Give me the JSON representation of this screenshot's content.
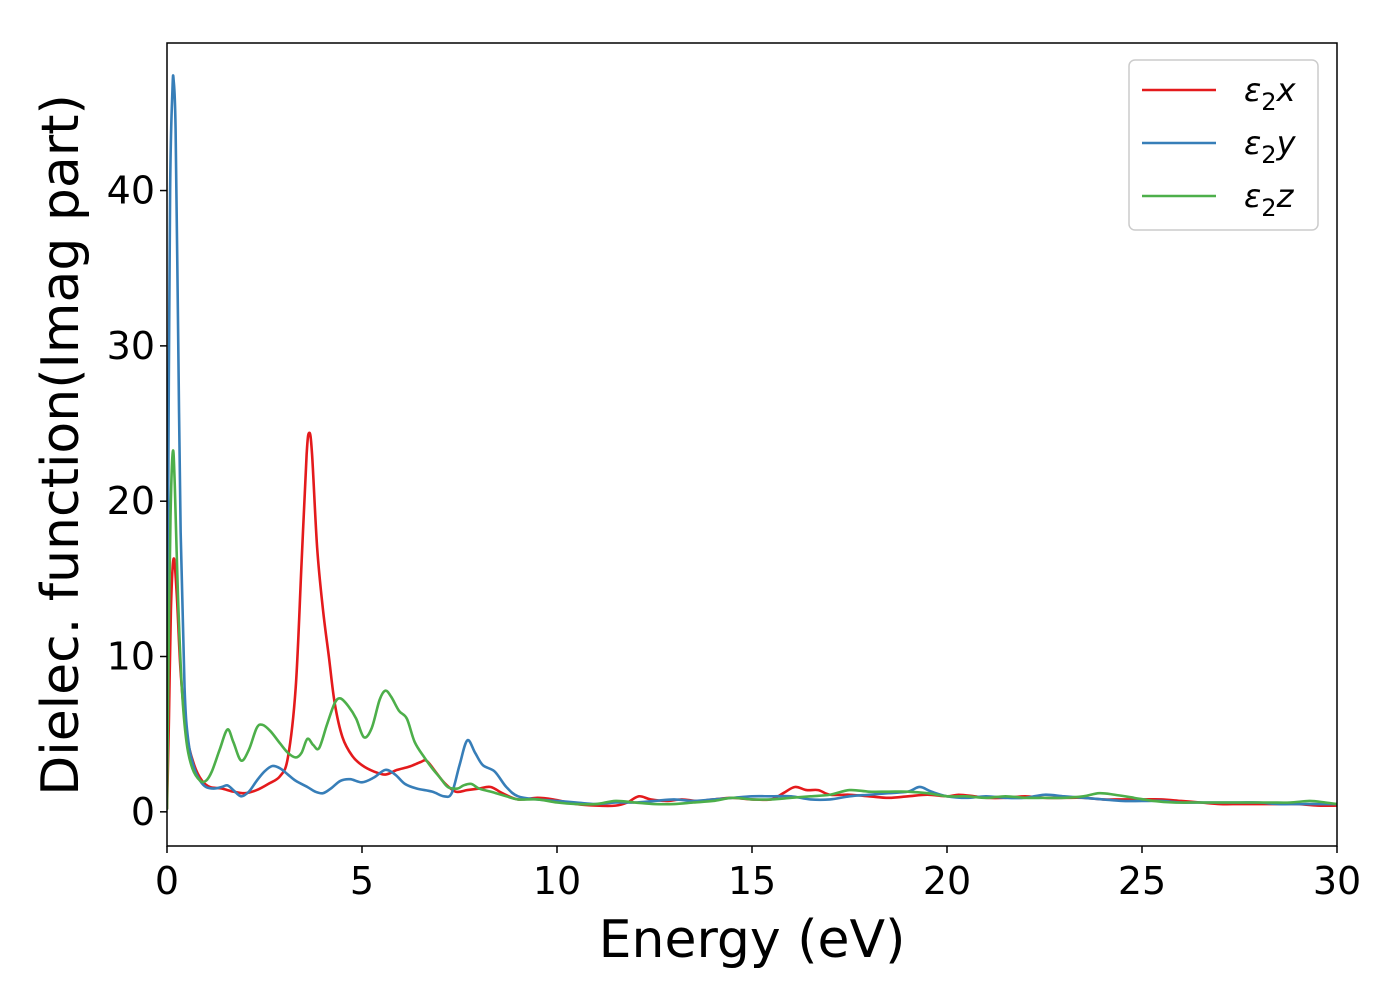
{
  "chart_data": {
    "type": "line",
    "title": "",
    "xlabel": "Energy (eV)",
    "ylabel": "Dielec. function(Imag part)",
    "xlim": [
      0,
      30
    ],
    "ylim": [
      -2.2,
      49.5
    ],
    "xticks": [
      0,
      5,
      10,
      15,
      20,
      25,
      30
    ],
    "yticks": [
      0,
      10,
      20,
      30,
      40
    ],
    "grid": false,
    "legend_position": "top-right",
    "series": [
      {
        "name": "ε2x",
        "legend": {
          "base": "ε",
          "sub": "2",
          "tail": "x"
        },
        "color": "#e41a1c",
        "points": [
          [
            0.0,
            0.2
          ],
          [
            0.05,
            6.0
          ],
          [
            0.1,
            13.0
          ],
          [
            0.17,
            16.3
          ],
          [
            0.25,
            14.0
          ],
          [
            0.35,
            9.0
          ],
          [
            0.5,
            5.0
          ],
          [
            0.7,
            3.0
          ],
          [
            0.9,
            2.0
          ],
          [
            1.1,
            1.6
          ],
          [
            1.4,
            1.5
          ],
          [
            1.7,
            1.3
          ],
          [
            2.0,
            1.2
          ],
          [
            2.3,
            1.4
          ],
          [
            2.6,
            1.8
          ],
          [
            2.9,
            2.3
          ],
          [
            3.1,
            3.5
          ],
          [
            3.3,
            8.0
          ],
          [
            3.45,
            16.0
          ],
          [
            3.58,
            23.0
          ],
          [
            3.65,
            24.4
          ],
          [
            3.72,
            23.0
          ],
          [
            3.85,
            17.0
          ],
          [
            4.0,
            13.0
          ],
          [
            4.15,
            10.0
          ],
          [
            4.3,
            7.0
          ],
          [
            4.5,
            4.8
          ],
          [
            4.75,
            3.6
          ],
          [
            5.0,
            3.0
          ],
          [
            5.3,
            2.6
          ],
          [
            5.6,
            2.4
          ],
          [
            5.9,
            2.7
          ],
          [
            6.2,
            2.9
          ],
          [
            6.5,
            3.2
          ],
          [
            6.65,
            3.3
          ],
          [
            6.85,
            2.7
          ],
          [
            7.1,
            1.9
          ],
          [
            7.4,
            1.3
          ],
          [
            7.7,
            1.4
          ],
          [
            8.0,
            1.5
          ],
          [
            8.3,
            1.6
          ],
          [
            8.6,
            1.2
          ],
          [
            9.0,
            0.8
          ],
          [
            9.5,
            0.9
          ],
          [
            9.9,
            0.8
          ],
          [
            10.5,
            0.5
          ],
          [
            11.0,
            0.4
          ],
          [
            11.5,
            0.4
          ],
          [
            11.8,
            0.6
          ],
          [
            12.1,
            1.0
          ],
          [
            12.4,
            0.8
          ],
          [
            12.8,
            0.7
          ],
          [
            13.2,
            0.8
          ],
          [
            13.6,
            0.7
          ],
          [
            14.0,
            0.8
          ],
          [
            14.5,
            0.9
          ],
          [
            15.0,
            0.8
          ],
          [
            15.5,
            0.8
          ],
          [
            15.8,
            1.2
          ],
          [
            16.1,
            1.6
          ],
          [
            16.4,
            1.4
          ],
          [
            16.7,
            1.4
          ],
          [
            17.0,
            1.1
          ],
          [
            17.5,
            1.1
          ],
          [
            18.0,
            1.0
          ],
          [
            18.5,
            0.9
          ],
          [
            19.0,
            1.0
          ],
          [
            19.5,
            1.1
          ],
          [
            20.0,
            1.0
          ],
          [
            20.3,
            1.1
          ],
          [
            20.7,
            1.0
          ],
          [
            21.0,
            0.9
          ],
          [
            21.5,
            0.9
          ],
          [
            22.0,
            1.0
          ],
          [
            22.5,
            0.9
          ],
          [
            23.0,
            0.9
          ],
          [
            23.5,
            0.9
          ],
          [
            24.0,
            0.8
          ],
          [
            24.5,
            0.8
          ],
          [
            25.0,
            0.8
          ],
          [
            25.5,
            0.8
          ],
          [
            26.0,
            0.7
          ],
          [
            26.5,
            0.6
          ],
          [
            27.0,
            0.5
          ],
          [
            27.5,
            0.5
          ],
          [
            28.0,
            0.5
          ],
          [
            28.5,
            0.5
          ],
          [
            29.0,
            0.5
          ],
          [
            29.5,
            0.4
          ],
          [
            30.0,
            0.4
          ]
        ]
      },
      {
        "name": "ε2y",
        "legend": {
          "base": "ε",
          "sub": "2",
          "tail": "y"
        },
        "color": "#377eb8",
        "points": [
          [
            0.0,
            2.0
          ],
          [
            0.03,
            20.0
          ],
          [
            0.08,
            40.0
          ],
          [
            0.14,
            46.5
          ],
          [
            0.17,
            47.1
          ],
          [
            0.22,
            44.0
          ],
          [
            0.28,
            32.0
          ],
          [
            0.35,
            18.0
          ],
          [
            0.45,
            8.0
          ],
          [
            0.55,
            4.5
          ],
          [
            0.7,
            2.8
          ],
          [
            0.85,
            2.0
          ],
          [
            1.0,
            1.6
          ],
          [
            1.2,
            1.5
          ],
          [
            1.4,
            1.6
          ],
          [
            1.55,
            1.7
          ],
          [
            1.7,
            1.4
          ],
          [
            1.9,
            1.0
          ],
          [
            2.1,
            1.3
          ],
          [
            2.3,
            2.0
          ],
          [
            2.5,
            2.6
          ],
          [
            2.7,
            2.95
          ],
          [
            2.9,
            2.8
          ],
          [
            3.1,
            2.4
          ],
          [
            3.3,
            2.0
          ],
          [
            3.6,
            1.6
          ],
          [
            3.8,
            1.3
          ],
          [
            4.0,
            1.2
          ],
          [
            4.2,
            1.5
          ],
          [
            4.45,
            2.0
          ],
          [
            4.7,
            2.1
          ],
          [
            5.0,
            1.9
          ],
          [
            5.3,
            2.2
          ],
          [
            5.6,
            2.7
          ],
          [
            5.85,
            2.4
          ],
          [
            6.1,
            1.8
          ],
          [
            6.4,
            1.5
          ],
          [
            6.8,
            1.3
          ],
          [
            7.1,
            1.0
          ],
          [
            7.3,
            1.2
          ],
          [
            7.5,
            3.0
          ],
          [
            7.7,
            4.6
          ],
          [
            7.9,
            3.8
          ],
          [
            8.1,
            3.0
          ],
          [
            8.4,
            2.6
          ],
          [
            8.7,
            1.6
          ],
          [
            9.0,
            1.0
          ],
          [
            9.5,
            0.8
          ],
          [
            10.0,
            0.7
          ],
          [
            10.5,
            0.6
          ],
          [
            11.0,
            0.5
          ],
          [
            11.5,
            0.6
          ],
          [
            12.0,
            0.6
          ],
          [
            12.5,
            0.7
          ],
          [
            13.0,
            0.8
          ],
          [
            13.5,
            0.7
          ],
          [
            14.0,
            0.8
          ],
          [
            14.5,
            0.9
          ],
          [
            15.0,
            1.0
          ],
          [
            15.5,
            1.0
          ],
          [
            16.0,
            1.0
          ],
          [
            16.5,
            0.8
          ],
          [
            17.0,
            0.8
          ],
          [
            17.5,
            1.0
          ],
          [
            18.0,
            1.1
          ],
          [
            18.5,
            1.2
          ],
          [
            19.0,
            1.3
          ],
          [
            19.3,
            1.6
          ],
          [
            19.6,
            1.3
          ],
          [
            20.0,
            1.0
          ],
          [
            20.5,
            0.9
          ],
          [
            21.0,
            1.0
          ],
          [
            21.5,
            0.9
          ],
          [
            22.0,
            0.9
          ],
          [
            22.5,
            1.1
          ],
          [
            23.0,
            1.0
          ],
          [
            23.5,
            0.9
          ],
          [
            24.0,
            0.8
          ],
          [
            24.5,
            0.7
          ],
          [
            25.0,
            0.7
          ],
          [
            25.5,
            0.7
          ],
          [
            26.0,
            0.6
          ],
          [
            26.5,
            0.6
          ],
          [
            27.0,
            0.6
          ],
          [
            27.5,
            0.6
          ],
          [
            28.0,
            0.6
          ],
          [
            28.5,
            0.5
          ],
          [
            29.0,
            0.5
          ],
          [
            29.5,
            0.5
          ],
          [
            30.0,
            0.5
          ]
        ]
      },
      {
        "name": "ε2z",
        "legend": {
          "base": "ε",
          "sub": "2",
          "tail": "z"
        },
        "color": "#4daf4a",
        "points": [
          [
            0.0,
            0.2
          ],
          [
            0.04,
            10.0
          ],
          [
            0.09,
            19.0
          ],
          [
            0.15,
            23.2
          ],
          [
            0.2,
            21.0
          ],
          [
            0.28,
            14.0
          ],
          [
            0.38,
            8.0
          ],
          [
            0.5,
            4.5
          ],
          [
            0.65,
            2.8
          ],
          [
            0.85,
            2.0
          ],
          [
            1.0,
            2.0
          ],
          [
            1.15,
            2.6
          ],
          [
            1.35,
            4.0
          ],
          [
            1.55,
            5.3
          ],
          [
            1.7,
            4.5
          ],
          [
            1.9,
            3.3
          ],
          [
            2.1,
            4.0
          ],
          [
            2.3,
            5.4
          ],
          [
            2.45,
            5.6
          ],
          [
            2.65,
            5.2
          ],
          [
            2.9,
            4.4
          ],
          [
            3.1,
            3.8
          ],
          [
            3.3,
            3.5
          ],
          [
            3.45,
            3.8
          ],
          [
            3.6,
            4.7
          ],
          [
            3.75,
            4.3
          ],
          [
            3.9,
            4.1
          ],
          [
            4.1,
            5.6
          ],
          [
            4.3,
            7.0
          ],
          [
            4.45,
            7.3
          ],
          [
            4.65,
            6.8
          ],
          [
            4.85,
            6.0
          ],
          [
            5.05,
            4.8
          ],
          [
            5.25,
            5.4
          ],
          [
            5.45,
            7.2
          ],
          [
            5.6,
            7.8
          ],
          [
            5.75,
            7.4
          ],
          [
            5.95,
            6.5
          ],
          [
            6.15,
            6.0
          ],
          [
            6.35,
            4.5
          ],
          [
            6.6,
            3.5
          ],
          [
            6.8,
            2.8
          ],
          [
            7.0,
            2.2
          ],
          [
            7.2,
            1.6
          ],
          [
            7.45,
            1.5
          ],
          [
            7.6,
            1.7
          ],
          [
            7.8,
            1.8
          ],
          [
            8.0,
            1.5
          ],
          [
            8.3,
            1.3
          ],
          [
            8.7,
            1.0
          ],
          [
            9.0,
            0.8
          ],
          [
            9.5,
            0.8
          ],
          [
            10.0,
            0.6
          ],
          [
            10.5,
            0.5
          ],
          [
            11.0,
            0.5
          ],
          [
            11.5,
            0.7
          ],
          [
            12.0,
            0.6
          ],
          [
            12.5,
            0.5
          ],
          [
            13.0,
            0.5
          ],
          [
            13.5,
            0.6
          ],
          [
            14.0,
            0.7
          ],
          [
            14.5,
            0.9
          ],
          [
            15.0,
            0.8
          ],
          [
            15.5,
            0.8
          ],
          [
            16.0,
            0.9
          ],
          [
            16.5,
            1.0
          ],
          [
            17.0,
            1.1
          ],
          [
            17.5,
            1.4
          ],
          [
            18.0,
            1.3
          ],
          [
            18.5,
            1.3
          ],
          [
            19.0,
            1.3
          ],
          [
            19.5,
            1.2
          ],
          [
            20.0,
            1.0
          ],
          [
            20.5,
            1.0
          ],
          [
            21.0,
            0.9
          ],
          [
            21.5,
            1.0
          ],
          [
            22.0,
            0.9
          ],
          [
            22.5,
            0.9
          ],
          [
            23.0,
            0.9
          ],
          [
            23.5,
            1.0
          ],
          [
            23.9,
            1.2
          ],
          [
            24.3,
            1.1
          ],
          [
            24.8,
            0.9
          ],
          [
            25.3,
            0.7
          ],
          [
            25.8,
            0.6
          ],
          [
            26.3,
            0.6
          ],
          [
            26.8,
            0.6
          ],
          [
            27.3,
            0.6
          ],
          [
            27.8,
            0.6
          ],
          [
            28.3,
            0.6
          ],
          [
            28.8,
            0.6
          ],
          [
            29.3,
            0.7
          ],
          [
            29.7,
            0.6
          ],
          [
            30.0,
            0.5
          ]
        ]
      }
    ]
  }
}
